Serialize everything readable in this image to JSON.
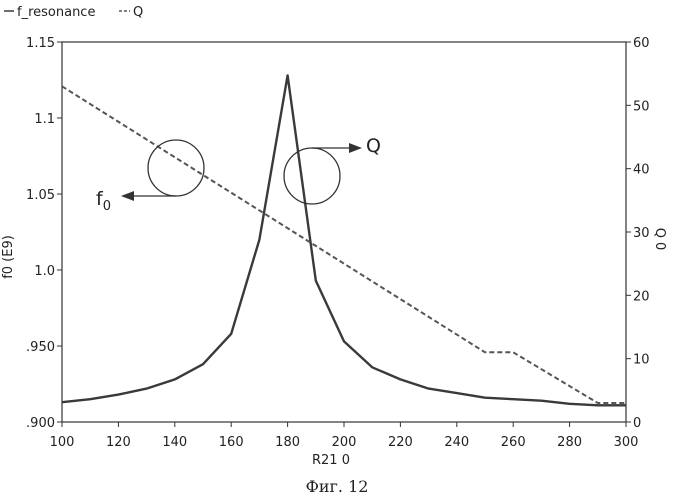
{
  "chart_data": {
    "type": "line",
    "caption": "Фиг. 12",
    "legend": [
      {
        "name": "f_resonance",
        "style": "solid"
      },
      {
        "name": "Q",
        "style": "dashed"
      }
    ],
    "x_axis": {
      "label": "R21 0",
      "range": [
        100,
        300
      ],
      "ticks": [
        100,
        120,
        140,
        160,
        180,
        200,
        220,
        240,
        260,
        280,
        300
      ],
      "tick_labels": [
        "100",
        "120",
        "140",
        "160",
        "180",
        "200",
        "220",
        "240",
        "260",
        "280",
        "300"
      ]
    },
    "y_left_axis": {
      "label": "f0 (E9)",
      "range": [
        0.9,
        1.15
      ],
      "ticks": [
        0.9,
        0.95,
        1.0,
        1.05,
        1.1,
        1.15
      ],
      "tick_labels": [
        ".900",
        ".950",
        "1.0",
        "1.05",
        "1.1",
        "1.15"
      ]
    },
    "y_right_axis": {
      "label": "Q 0",
      "range": [
        0,
        60
      ],
      "ticks": [
        0,
        10,
        20,
        30,
        40,
        50,
        60
      ],
      "tick_labels": [
        "0",
        "10",
        "20",
        "30",
        "40",
        "50",
        "60"
      ]
    },
    "series": [
      {
        "name": "f_resonance",
        "axis": "left",
        "style": "solid",
        "color": "#3a3a3a",
        "x": [
          100,
          110,
          120,
          130,
          140,
          150,
          160,
          170,
          180,
          190,
          200,
          210,
          220,
          230,
          240,
          250,
          260,
          270,
          280,
          290,
          300
        ],
        "y": [
          0.913,
          0.915,
          0.918,
          0.922,
          0.928,
          0.938,
          0.958,
          1.02,
          1.128,
          0.993,
          0.953,
          0.936,
          0.928,
          0.922,
          0.919,
          0.916,
          0.915,
          0.914,
          0.912,
          0.911,
          0.911
        ]
      },
      {
        "name": "Q",
        "axis": "right",
        "style": "dashed",
        "color": "#555555",
        "x": [
          100,
          250,
          260,
          290,
          300
        ],
        "y": [
          53,
          11,
          11,
          3,
          3
        ]
      }
    ],
    "annotations": [
      {
        "label": "f",
        "subscript": "0",
        "target_axis": "left",
        "arrow_direction": "left"
      },
      {
        "label": "Q",
        "target_axis": "right",
        "arrow_direction": "right"
      }
    ]
  }
}
